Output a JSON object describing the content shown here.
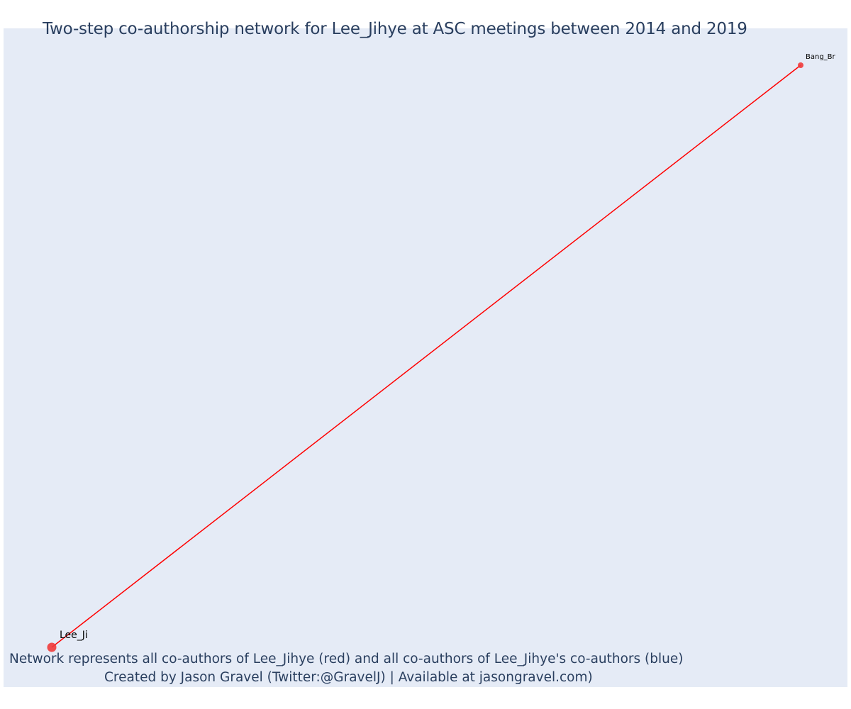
{
  "title": "Two-step co-authorship network for Lee_Jihye at ASC meetings between 2014 and 2019",
  "caption": {
    "line1": "Network represents all co-authors of Lee_Jihye (red) and all co-authors of Lee_Jihye's co-authors (blue)",
    "line2": "Created by Jason Gravel (Twitter:@GravelJ) | Available at jasongravel.com)"
  },
  "colors": {
    "plot_background": "#e5ebf6",
    "text": "#2a3f5f",
    "edge": "#ff0000",
    "node_red": "#ef3b3b"
  },
  "network": {
    "nodes": [
      {
        "id": "lee",
        "label": "Lee_Ji",
        "group": "red",
        "focal": true
      },
      {
        "id": "bang",
        "label": "Bang_Br",
        "group": "red",
        "focal": false
      }
    ],
    "edges": [
      {
        "source": "lee",
        "target": "bang",
        "color": "#ff0000"
      }
    ]
  }
}
